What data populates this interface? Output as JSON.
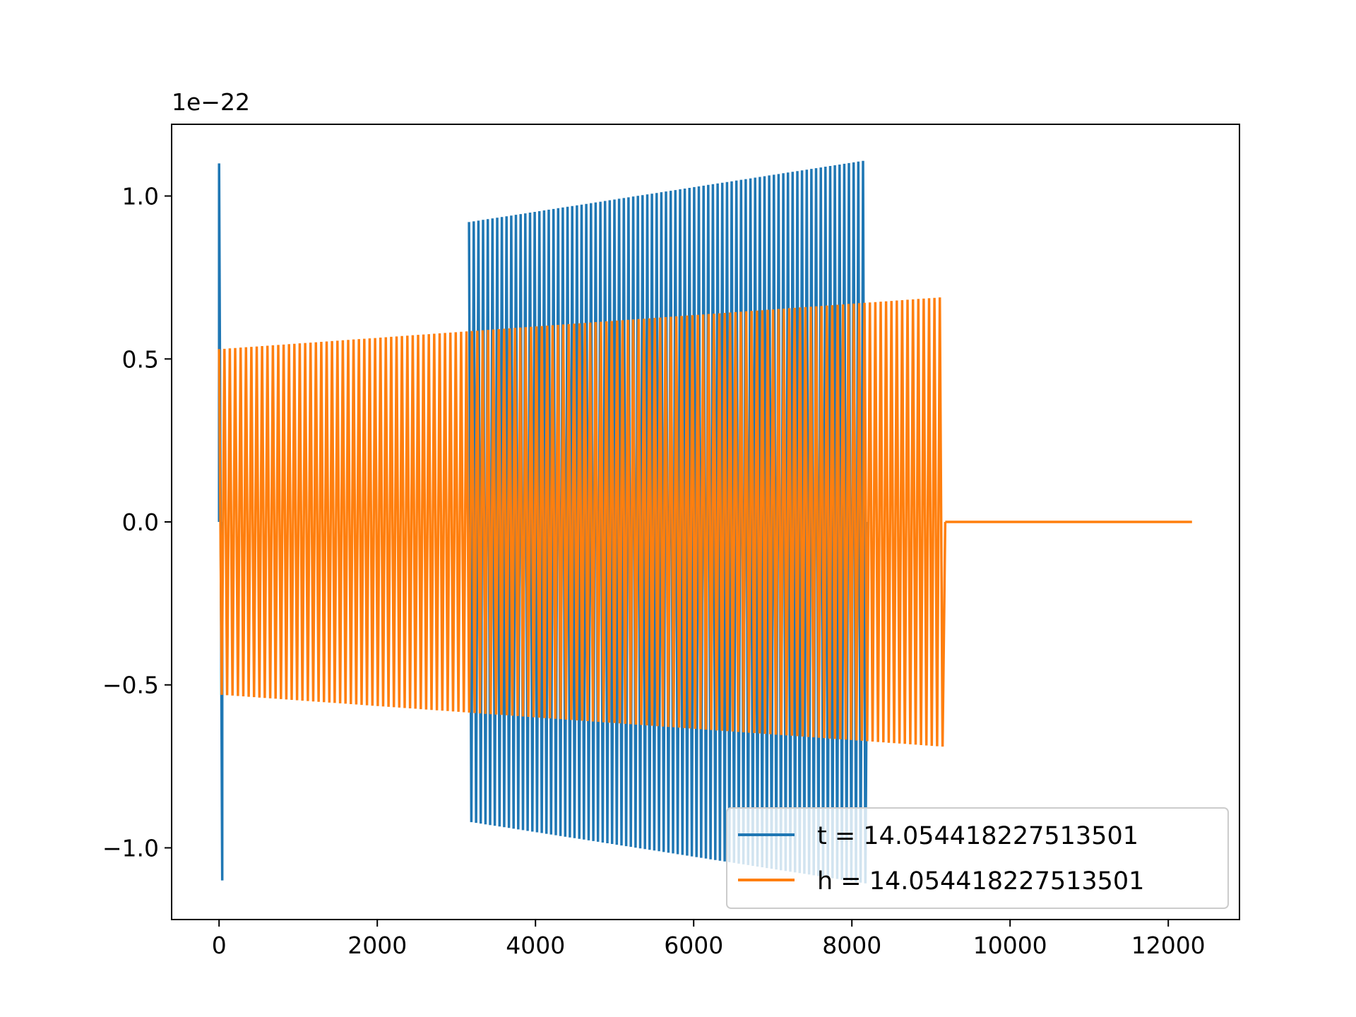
{
  "chart_data": {
    "type": "line",
    "title": "",
    "xlabel": "",
    "ylabel": "",
    "y_offset_label": "1e−22",
    "xlim": [
      -600,
      12900
    ],
    "ylim": [
      -1.22,
      1.22
    ],
    "x_ticks": [
      0,
      2000,
      4000,
      6000,
      8000,
      10000,
      12000
    ],
    "x_tick_labels": [
      "0",
      "2000",
      "4000",
      "6000",
      "8000",
      "10000",
      "12000"
    ],
    "y_ticks": [
      -1.0,
      -0.5,
      0.0,
      0.5,
      1.0
    ],
    "y_tick_labels": [
      "−1.0",
      "−0.5",
      "0.0",
      "0.5",
      "1.0"
    ],
    "grid": false,
    "legend_position": "lower-right",
    "series": [
      {
        "name": "t = 14.054418227513501",
        "color": "#1f77b4",
        "segments": [
          {
            "kind": "spike",
            "x_start": 0,
            "x_end": 40,
            "peak": 1.1,
            "trough": -1.1
          },
          {
            "kind": "oscillation",
            "x_start": 3160,
            "x_end": 8200,
            "amp_start": 0.92,
            "amp_end": 1.11,
            "cycles": 85
          }
        ]
      },
      {
        "name": "h = 14.054418227513501",
        "color": "#ff7f0e",
        "segments": [
          {
            "kind": "oscillation",
            "x_start": 0,
            "x_end": 9180,
            "amp_start": 0.53,
            "amp_end": 0.69,
            "cycles": 135
          },
          {
            "kind": "flat",
            "x_start": 9180,
            "x_end": 12300,
            "value": 0.0
          }
        ]
      }
    ]
  }
}
